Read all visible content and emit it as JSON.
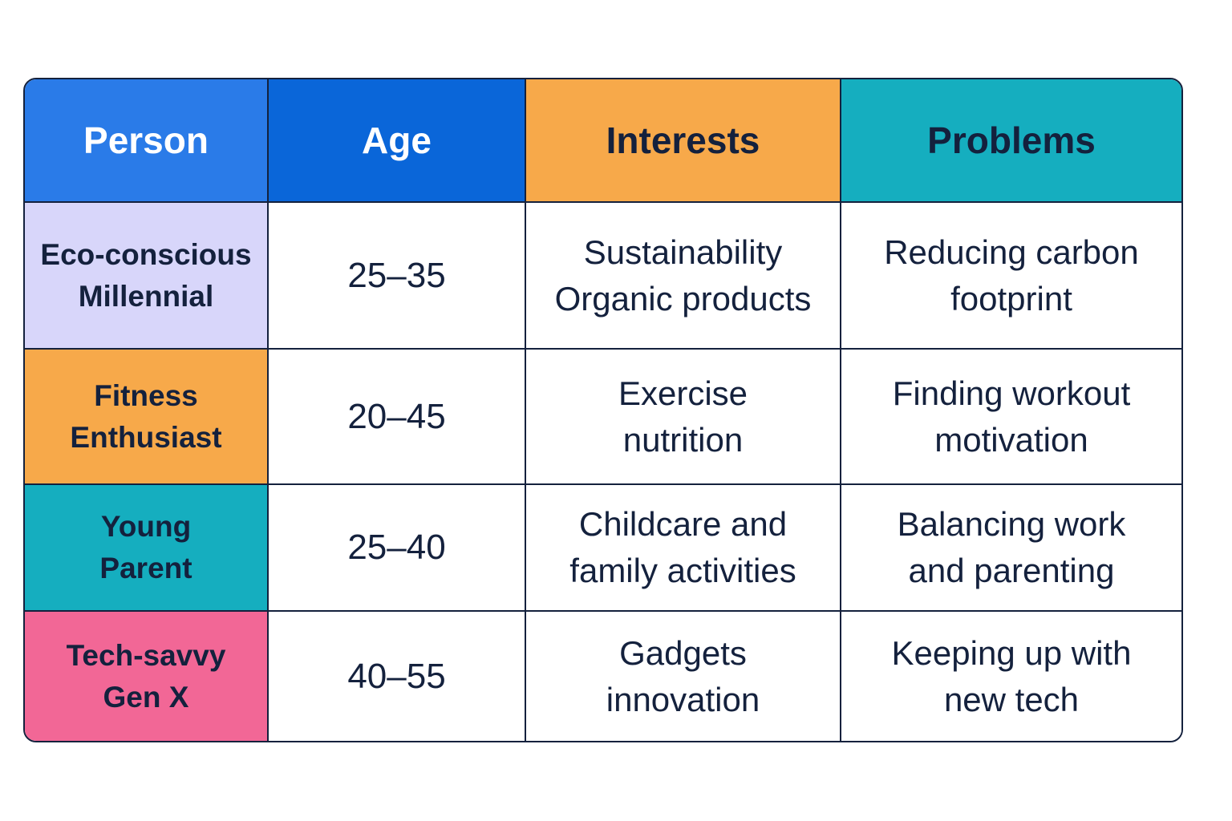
{
  "colors": {
    "person_header": "#2a7be8",
    "age_header": "#0a66d9",
    "interests_header": "#f7a94a",
    "problems_header": "#15aebf",
    "border": "#14213d"
  },
  "headers": {
    "person": "Person",
    "age": "Age",
    "interests": "Interests",
    "problems": "Problems"
  },
  "rows": [
    {
      "person": [
        "Eco-conscious",
        "Millennial"
      ],
      "person_color": "#d8d6fa",
      "age": "25–35",
      "interests": [
        "Sustainability",
        "Organic products"
      ],
      "problems": [
        "Reducing carbon",
        "footprint"
      ]
    },
    {
      "person": [
        "Fitness",
        "Enthusiast"
      ],
      "person_color": "#f7a94a",
      "age": "20–45",
      "interests": [
        "Exercise",
        "nutrition"
      ],
      "problems": [
        "Finding workout",
        "motivation"
      ]
    },
    {
      "person": [
        "Young",
        "Parent"
      ],
      "person_color": "#15aebf",
      "age": "25–40",
      "interests": [
        "Childcare and",
        "family activities"
      ],
      "problems": [
        "Balancing work",
        "and parenting"
      ]
    },
    {
      "person": [
        "Tech-savvy",
        "Gen X"
      ],
      "person_color": "#f26796",
      "age": "40–55",
      "interests": [
        "Gadgets",
        "innovation"
      ],
      "problems": [
        "Keeping up with",
        "new tech"
      ]
    }
  ]
}
